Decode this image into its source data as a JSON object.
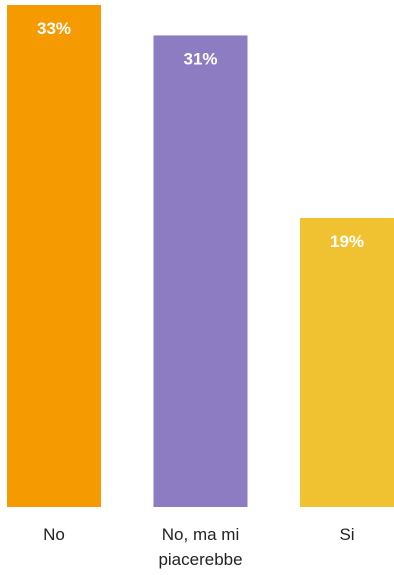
{
  "chart_data": {
    "type": "bar",
    "categories": [
      "No",
      "No, ma mi piacerebbe",
      "Si"
    ],
    "category_lines": [
      [
        "No"
      ],
      [
        "No, ma mi",
        "piacerebbe"
      ],
      [
        "Si"
      ]
    ],
    "values": [
      33,
      31,
      19
    ],
    "value_labels": [
      "33%",
      "31%",
      "19%"
    ],
    "colors": [
      "#f59a00",
      "#8e7cc3",
      "#f0c232"
    ],
    "ylim": [
      0,
      33
    ],
    "grid": false,
    "title": "",
    "xlabel": "",
    "ylabel": ""
  }
}
